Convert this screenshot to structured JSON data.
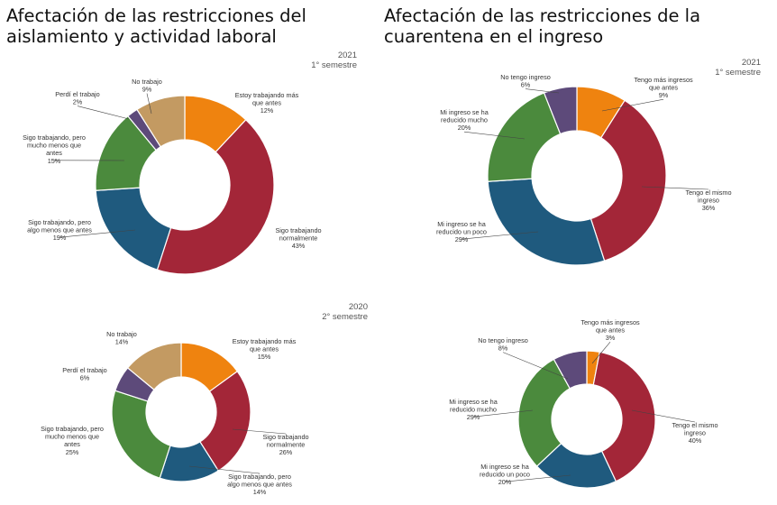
{
  "titles": {
    "left": "Afectación de las restricciones del aislamiento y actividad laboral",
    "right": "Afectación de las restricciones de la cuarentena en el ingreso"
  },
  "periods": {
    "top_right": {
      "year": "2021",
      "semester": "1° semestre"
    },
    "bottom_left": {
      "year": "2020",
      "semester": "2° semestre"
    }
  },
  "colors": {
    "orange": "#ef830f",
    "red": "#a32638",
    "blue": "#1f5a7e",
    "green": "#4b8a3d",
    "purple": "#5d4a7a",
    "tan": "#c39a62"
  },
  "chart_data": [
    {
      "type": "pie",
      "donut": true,
      "title": "Afectación de las restricciones del aislamiento y actividad laboral",
      "period": "2021 1° semestre",
      "slices": [
        {
          "label": "Estoy trabajando más que antes",
          "value": 12,
          "value_label": "12%",
          "color": "#ef830f"
        },
        {
          "label": "Sigo trabajando normalmente",
          "value": 43,
          "value_label": "43%",
          "color": "#a32638"
        },
        {
          "label": "Sigo trabajando, pero algo menos que antes",
          "value": 19,
          "value_label": "19%",
          "color": "#1f5a7e"
        },
        {
          "label": "Sigo trabajando, pero mucho menos que antes",
          "value": 15,
          "value_label": "15%",
          "color": "#4b8a3d"
        },
        {
          "label": "Perdí el trabajo",
          "value": 2,
          "value_label": "2%",
          "color": "#5d4a7a"
        },
        {
          "label": "No trabajo",
          "value": 9,
          "value_label": "9%",
          "color": "#c39a62"
        }
      ]
    },
    {
      "type": "pie",
      "donut": true,
      "title": "Afectación de las restricciones de la cuarentena en el ingreso",
      "period": "2021 1° semestre",
      "slices": [
        {
          "label": "Tengo más ingresos que antes",
          "value": 9,
          "value_label": "9%",
          "color": "#ef830f"
        },
        {
          "label": "Tengo el mismo ingreso",
          "value": 36,
          "value_label": "36%",
          "color": "#a32638"
        },
        {
          "label": "Mi ingreso se ha reducido un poco",
          "value": 29,
          "value_label": "29%",
          "color": "#1f5a7e"
        },
        {
          "label": "Mi ingreso se ha reducido mucho",
          "value": 20,
          "value_label": "20%",
          "color": "#4b8a3d"
        },
        {
          "label": "No tengo ingreso",
          "value": 6,
          "value_label": "6%",
          "color": "#5d4a7a"
        }
      ]
    },
    {
      "type": "pie",
      "donut": true,
      "title": "Afectación de las restricciones del aislamiento y actividad laboral",
      "period": "2020 2° semestre",
      "slices": [
        {
          "label": "Estoy trabajando más que antes",
          "value": 15,
          "value_label": "15%",
          "color": "#ef830f"
        },
        {
          "label": "Sigo trabajando normalmente",
          "value": 26,
          "value_label": "26%",
          "color": "#a32638"
        },
        {
          "label": "Sigo trabajando, pero algo menos que antes",
          "value": 14,
          "value_label": "14%",
          "color": "#1f5a7e"
        },
        {
          "label": "Sigo trabajando, pero mucho menos que antes",
          "value": 25,
          "value_label": "25%",
          "color": "#4b8a3d"
        },
        {
          "label": "Perdí el trabajo",
          "value": 6,
          "value_label": "6%",
          "color": "#5d4a7a"
        },
        {
          "label": "No trabajo",
          "value": 14,
          "value_label": "14%",
          "color": "#c39a62"
        }
      ]
    },
    {
      "type": "pie",
      "donut": true,
      "title": "Afectación de las restricciones de la cuarentena en el ingreso",
      "period": "2020 2° semestre",
      "slices": [
        {
          "label": "Tengo más ingresos que antes",
          "value": 3,
          "value_label": "3%",
          "color": "#ef830f"
        },
        {
          "label": "Tengo el mismo ingreso",
          "value": 40,
          "value_label": "40%",
          "color": "#a32638"
        },
        {
          "label": "Mi ingreso se ha reducido un poco",
          "value": 20,
          "value_label": "20%",
          "color": "#1f5a7e"
        },
        {
          "label": "Mi ingreso se ha reducido mucho",
          "value": 29,
          "value_label": "29%",
          "color": "#4b8a3d"
        },
        {
          "label": "No tengo ingreso",
          "value": 8,
          "value_label": "8%",
          "color": "#5d4a7a"
        }
      ]
    }
  ]
}
